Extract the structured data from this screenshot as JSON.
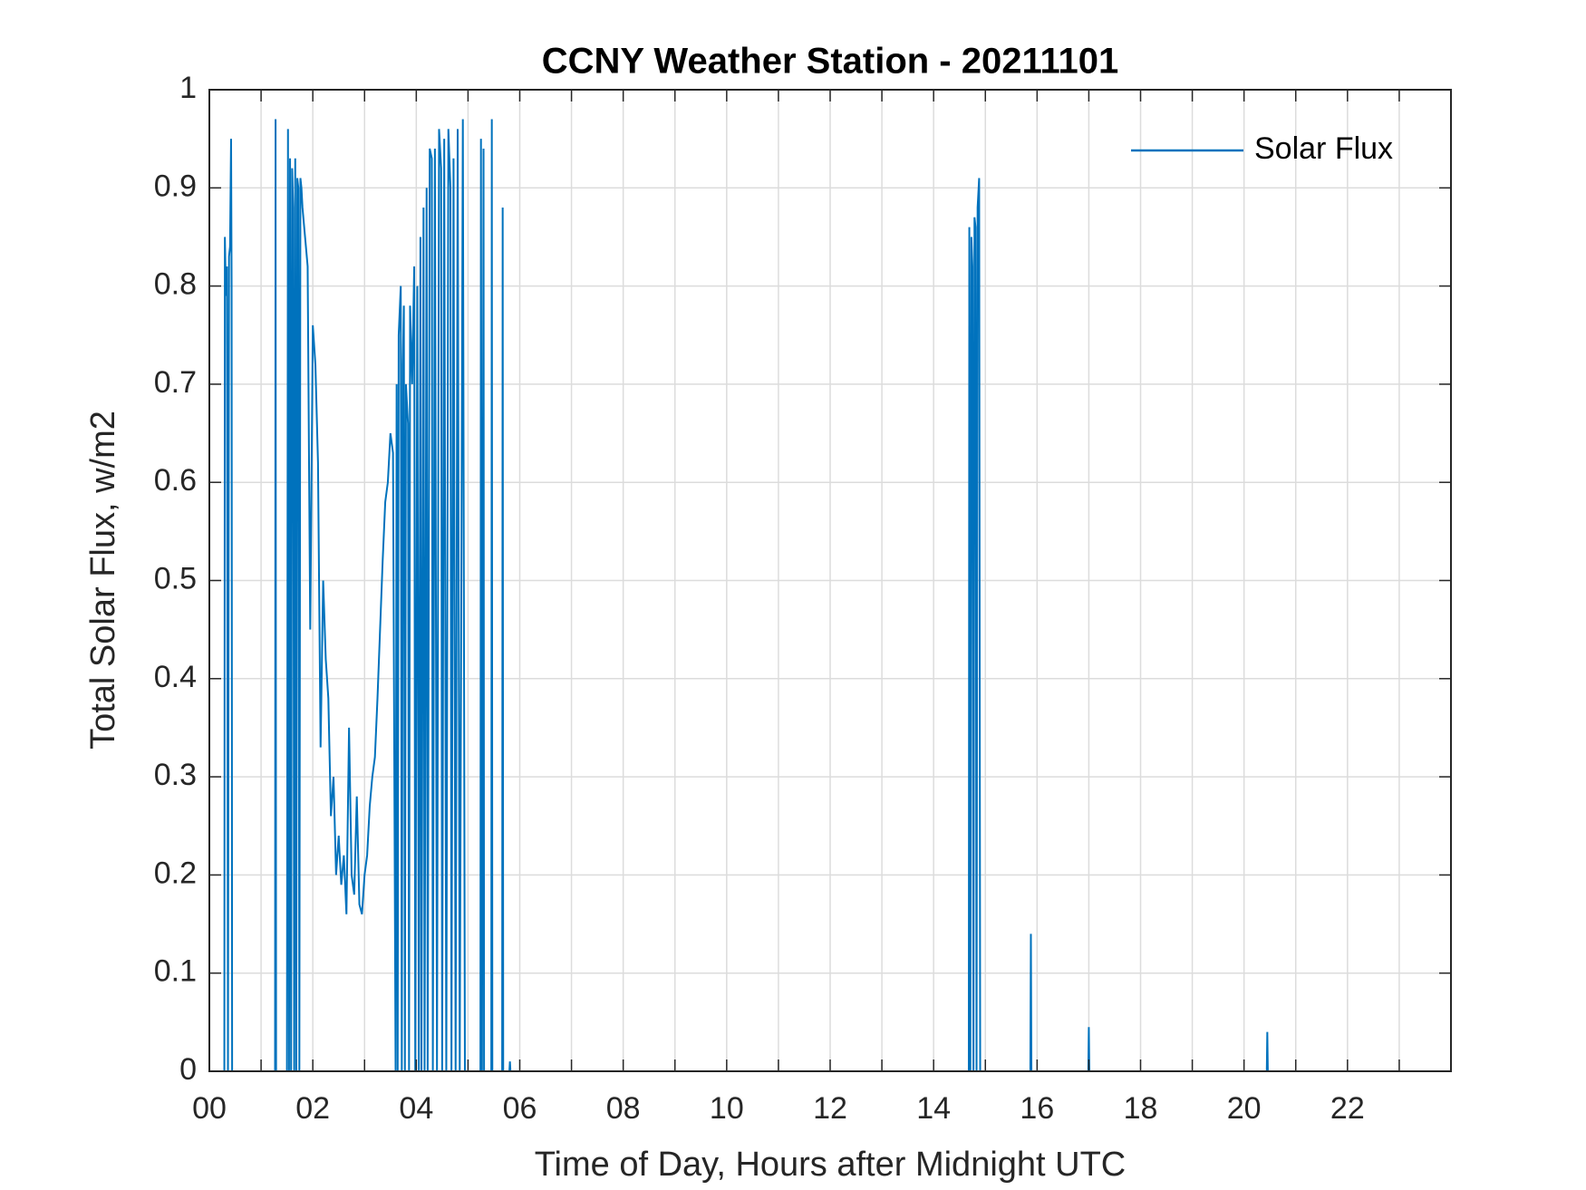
{
  "chart_data": {
    "type": "line",
    "title": "CCNY Weather Station - 20211101",
    "xlabel": "Time of Day, Hours after Midnight UTC",
    "ylabel": "Total Solar Flux, w/m2",
    "x": [
      0,
      0.29,
      0.3,
      0.32,
      0.34,
      0.36,
      0.38,
      0.4,
      0.42,
      0.43,
      0.44,
      1.27,
      1.28,
      1.29,
      1.5,
      1.52,
      1.54,
      1.56,
      1.58,
      1.6,
      1.62,
      1.64,
      1.66,
      1.68,
      1.7,
      1.72,
      1.74,
      1.76,
      1.78,
      1.8,
      1.85,
      1.9,
      1.95,
      2.0,
      2.05,
      2.1,
      2.15,
      2.2,
      2.25,
      2.3,
      2.35,
      2.4,
      2.45,
      2.5,
      2.55,
      2.6,
      2.65,
      2.7,
      2.75,
      2.8,
      2.85,
      2.9,
      2.95,
      3.0,
      3.05,
      3.1,
      3.15,
      3.2,
      3.25,
      3.3,
      3.35,
      3.4,
      3.45,
      3.5,
      3.55,
      3.6,
      3.62,
      3.64,
      3.66,
      3.7,
      3.72,
      3.74,
      3.76,
      3.78,
      3.8,
      3.84,
      3.86,
      3.88,
      3.92,
      3.96,
      3.98,
      4.02,
      4.05,
      4.08,
      4.1,
      4.14,
      4.16,
      4.2,
      4.22,
      4.26,
      4.3,
      4.32,
      4.36,
      4.4,
      4.44,
      4.48,
      4.5,
      4.54,
      4.58,
      4.62,
      4.66,
      4.68,
      4.72,
      4.76,
      4.8,
      4.84,
      4.9,
      4.94,
      5.24,
      5.25,
      5.27,
      5.3,
      5.31,
      5.45,
      5.46,
      5.47,
      5.66,
      5.67,
      5.68,
      5.8,
      5.81,
      5.82,
      14.68,
      14.69,
      14.71,
      14.73,
      14.75,
      14.77,
      14.79,
      14.81,
      14.83,
      14.85,
      14.88,
      14.9,
      15.87,
      15.88,
      15.89,
      16.99,
      17.0,
      17.01,
      20.44,
      20.45,
      20.46,
      24
    ],
    "series": [
      {
        "name": "Solar Flux",
        "color": "#0072bd",
        "values": [
          0,
          0,
          0.85,
          0.79,
          0.82,
          0,
          0.83,
          0.84,
          0.95,
          0.8,
          0,
          0,
          0.97,
          0,
          0,
          0.96,
          0,
          0.93,
          0,
          0.92,
          0.88,
          0,
          0.93,
          0,
          0.91,
          0.9,
          0,
          0.91,
          0.9,
          0.88,
          0.85,
          0.82,
          0.45,
          0.76,
          0.72,
          0.62,
          0.33,
          0.5,
          0.42,
          0.38,
          0.26,
          0.3,
          0.2,
          0.24,
          0.19,
          0.22,
          0.16,
          0.35,
          0.2,
          0.18,
          0.28,
          0.17,
          0.16,
          0.2,
          0.22,
          0.27,
          0.3,
          0.32,
          0.38,
          0.45,
          0.52,
          0.58,
          0.6,
          0.65,
          0.63,
          0,
          0.7,
          0,
          0.75,
          0.8,
          0,
          0.72,
          0.78,
          0,
          0.7,
          0.66,
          0,
          0.78,
          0.7,
          0.82,
          0,
          0.8,
          0,
          0.85,
          0,
          0.88,
          0,
          0.9,
          0,
          0.94,
          0.93,
          0,
          0.94,
          0,
          0.96,
          0.92,
          0,
          0.95,
          0,
          0.96,
          0.9,
          0,
          0.93,
          0,
          0.96,
          0,
          0.97,
          0,
          0,
          0.95,
          0,
          0.94,
          0,
          0,
          0.97,
          0,
          0,
          0.88,
          0,
          0,
          0.01,
          0,
          0,
          0.86,
          0,
          0.85,
          0.82,
          0,
          0.87,
          0.86,
          0,
          0.88,
          0.91,
          0,
          0,
          0.14,
          0,
          0,
          0.045,
          0,
          0,
          0.04,
          0,
          0
        ]
      }
    ],
    "xlim": [
      0,
      24
    ],
    "xticks": [
      {
        "value": 0,
        "label": "00"
      },
      {
        "value": 2,
        "label": "02"
      },
      {
        "value": 4,
        "label": "04"
      },
      {
        "value": 6,
        "label": "06"
      },
      {
        "value": 8,
        "label": "08"
      },
      {
        "value": 10,
        "label": "10"
      },
      {
        "value": 12,
        "label": "12"
      },
      {
        "value": 14,
        "label": "14"
      },
      {
        "value": 16,
        "label": "16"
      },
      {
        "value": 18,
        "label": "18"
      },
      {
        "value": 20,
        "label": "20"
      },
      {
        "value": 22,
        "label": "22"
      }
    ],
    "xminorticks": [
      1,
      3,
      5,
      7,
      9,
      11,
      13,
      15,
      17,
      19,
      21,
      23
    ],
    "ylim": [
      0,
      1
    ],
    "yticks": [
      0,
      0.1,
      0.2,
      0.3,
      0.4,
      0.5,
      0.6,
      0.7,
      0.8,
      0.9,
      1
    ],
    "grid": true,
    "legend": "northeast"
  }
}
